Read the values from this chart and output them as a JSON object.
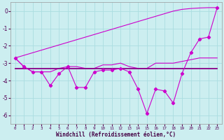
{
  "background_color": "#cceef0",
  "grid_color": "#aadde0",
  "line_color_bright": "#cc00cc",
  "line_color_dark": "#880088",
  "x": [
    0,
    1,
    2,
    3,
    4,
    5,
    6,
    7,
    8,
    9,
    10,
    11,
    12,
    13,
    14,
    15,
    16,
    17,
    18,
    19,
    20,
    21,
    22,
    23
  ],
  "series_diag": [
    -2.7,
    -2.55,
    -2.4,
    -2.25,
    -2.1,
    -1.95,
    -1.8,
    -1.65,
    -1.5,
    -1.35,
    -1.2,
    -1.05,
    -0.9,
    -0.75,
    -0.6,
    -0.45,
    -0.3,
    -0.15,
    0.0,
    0.1,
    0.15,
    0.18,
    0.2,
    0.2
  ],
  "series_zigzag": [
    -2.7,
    -3.2,
    -3.5,
    -3.5,
    -4.3,
    -3.6,
    -3.2,
    -4.4,
    -4.4,
    -3.5,
    -3.4,
    -3.4,
    -3.3,
    -3.5,
    -4.5,
    -5.9,
    -4.5,
    -4.6,
    -5.3,
    -3.6,
    -2.4,
    -1.6,
    -1.5,
    0.2
  ],
  "series_flat": [
    -3.3,
    -3.3,
    -3.3,
    -3.3,
    -3.3,
    -3.3,
    -3.3,
    -3.3,
    -3.3,
    -3.3,
    -3.3,
    -3.3,
    -3.3,
    -3.3,
    -3.3,
    -3.3,
    -3.3,
    -3.3,
    -3.3,
    -3.3,
    -3.3,
    -3.3,
    -3.3,
    -3.3
  ],
  "series_smooth": [
    -2.7,
    -3.2,
    -3.5,
    -3.5,
    -3.5,
    -3.3,
    -3.2,
    -3.2,
    -3.3,
    -3.3,
    -3.1,
    -3.1,
    -3.0,
    -3.2,
    -3.3,
    -3.3,
    -3.0,
    -3.0,
    -3.0,
    -2.9,
    -2.8,
    -2.7,
    -2.7,
    -2.7
  ],
  "xlim": [
    -0.5,
    23.5
  ],
  "ylim": [
    -6.5,
    0.5
  ],
  "yticks": [
    0,
    -1,
    -2,
    -3,
    -4,
    -5,
    -6
  ],
  "xticks": [
    0,
    1,
    2,
    3,
    4,
    5,
    6,
    7,
    8,
    9,
    10,
    11,
    12,
    13,
    14,
    15,
    16,
    17,
    18,
    19,
    20,
    21,
    22,
    23
  ],
  "xlabel": "Windchill (Refroidissement éolien,°C)"
}
